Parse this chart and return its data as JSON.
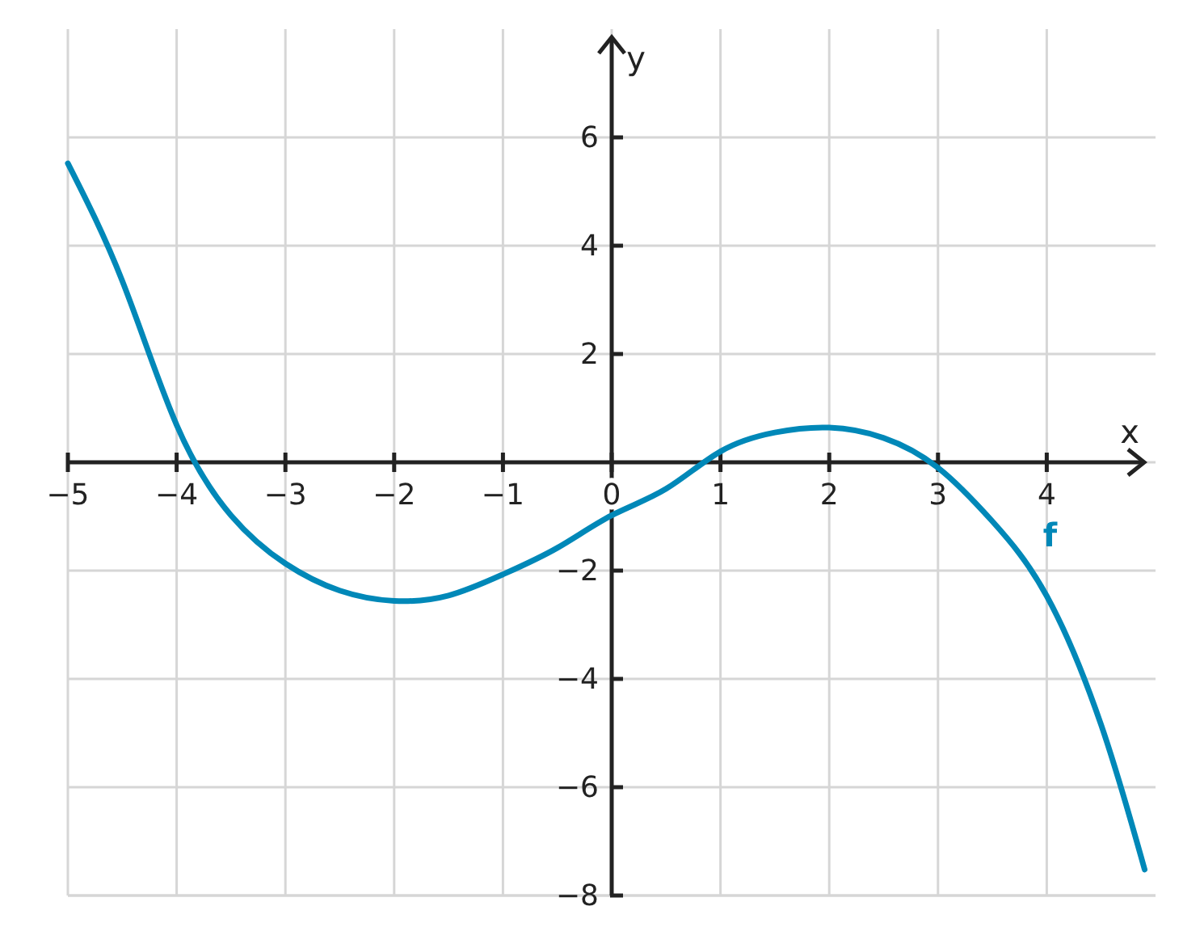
{
  "chart_data": {
    "type": "line",
    "xlabel": "x",
    "ylabel": "y",
    "xlim": [
      -5,
      5
    ],
    "ylim": [
      -8,
      8
    ],
    "xticks": [
      -5,
      -4,
      -3,
      -2,
      -1,
      0,
      1,
      2,
      3,
      4
    ],
    "yticks": [
      -8,
      -6,
      -4,
      -2,
      2,
      4,
      6
    ],
    "grid": true,
    "line_style": "solid",
    "marker": "none",
    "series": [
      {
        "name": "f",
        "color": "#0088b8",
        "x": [
          -5,
          -4.5,
          -4,
          -3.5,
          -3,
          -2.5,
          -2,
          -1.5,
          -1,
          -0.5,
          0,
          0.5,
          1,
          1.5,
          2,
          2.5,
          3,
          3.5,
          4,
          4.5,
          4.9
        ],
        "values": [
          5.52,
          3.35,
          0.69,
          -0.98,
          -1.87,
          -2.37,
          -2.56,
          -2.46,
          -2.07,
          -1.58,
          -0.98,
          -0.49,
          0.2,
          0.55,
          0.64,
          0.45,
          -0.1,
          -1.09,
          -2.47,
          -4.85,
          -7.52
        ]
      }
    ]
  }
}
